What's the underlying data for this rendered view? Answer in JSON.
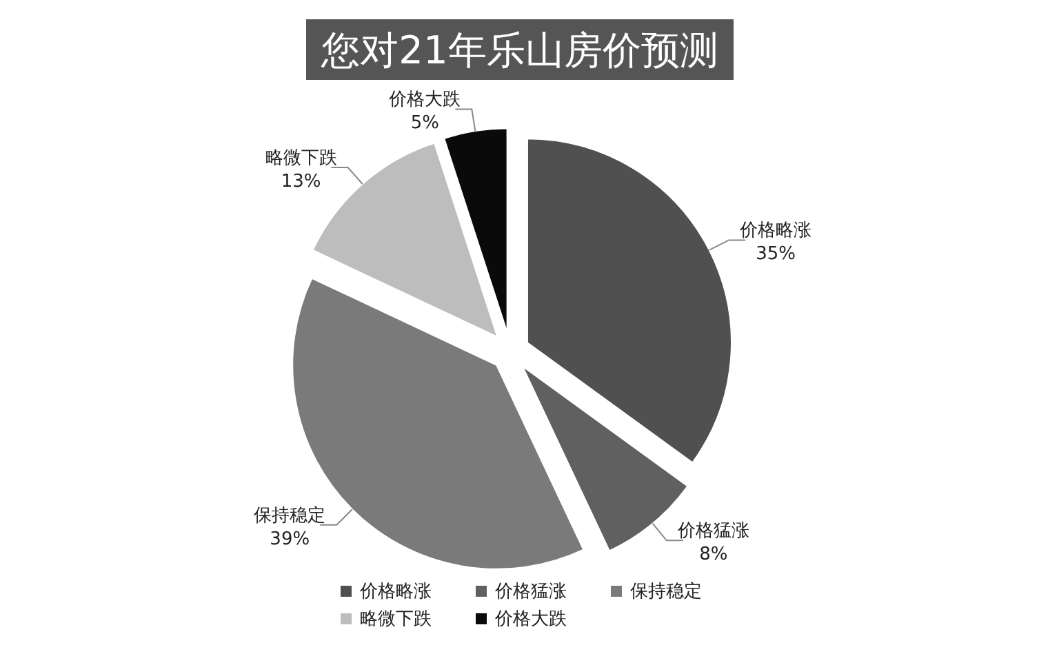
{
  "chart_data": {
    "type": "pie",
    "title": "您对21年乐山房价预测",
    "categories": [
      "价格略涨",
      "价格猛涨",
      "保持稳定",
      "略微下跌",
      "价格大跌"
    ],
    "values": [
      35,
      8,
      39,
      13,
      5
    ],
    "colors": [
      "#505050",
      "#606060",
      "#7a7a7a",
      "#bdbdbd",
      "#0a0a0a"
    ],
    "value_labels": [
      "35%",
      "8%",
      "39%",
      "13%",
      "5%"
    ],
    "legend": "bottom"
  }
}
